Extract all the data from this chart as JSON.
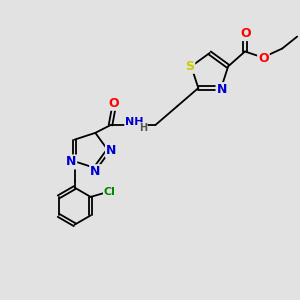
{
  "background_color": "#e2e2e2",
  "figure_size": [
    3.0,
    3.0
  ],
  "dpi": 100,
  "bond_color": "#000000",
  "atom_colors": {
    "S": "#cccc00",
    "N": "#0000cc",
    "O": "#ff0000",
    "Cl": "#008800",
    "H": "#555555"
  },
  "lw": 1.3,
  "font_size": 7.5,
  "xlim": [
    0,
    10
  ],
  "ylim": [
    0,
    10
  ]
}
